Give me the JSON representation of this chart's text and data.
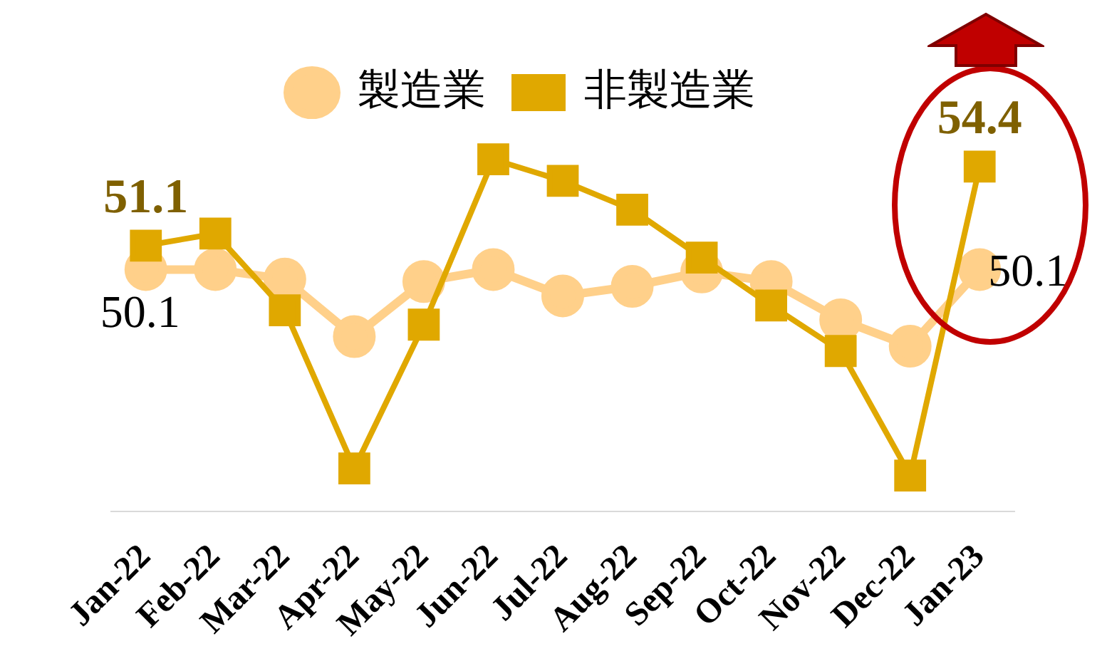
{
  "chart_data": {
    "type": "line",
    "categories": [
      "Jan-22",
      "Feb-22",
      "Mar-22",
      "Apr-22",
      "May-22",
      "Jun-22",
      "Jul-22",
      "Aug-22",
      "Sep-22",
      "Oct-22",
      "Nov-22",
      "Dec-22",
      "Jan-23"
    ],
    "series": [
      {
        "name": "製造業",
        "color": "#ffd08a",
        "marker": "circle",
        "values": [
          50.1,
          50.1,
          49.7,
          47.3,
          49.6,
          50.1,
          49.0,
          49.4,
          50.0,
          49.6,
          48.0,
          46.9,
          50.1
        ],
        "value_labels": [
          "50.1",
          null,
          null,
          null,
          null,
          null,
          null,
          null,
          null,
          null,
          null,
          null,
          "50.1"
        ]
      },
      {
        "name": "非製造業",
        "color": "#e0a800",
        "marker": "square",
        "values": [
          51.1,
          51.6,
          48.4,
          41.8,
          47.8,
          54.7,
          53.8,
          52.6,
          50.6,
          48.6,
          46.7,
          41.5,
          54.4
        ],
        "value_labels": [
          "51.1",
          null,
          null,
          null,
          null,
          null,
          null,
          null,
          null,
          null,
          null,
          null,
          "54.4"
        ]
      }
    ],
    "tick_labels": "x",
    "grid": false,
    "legend": "top"
  }
}
